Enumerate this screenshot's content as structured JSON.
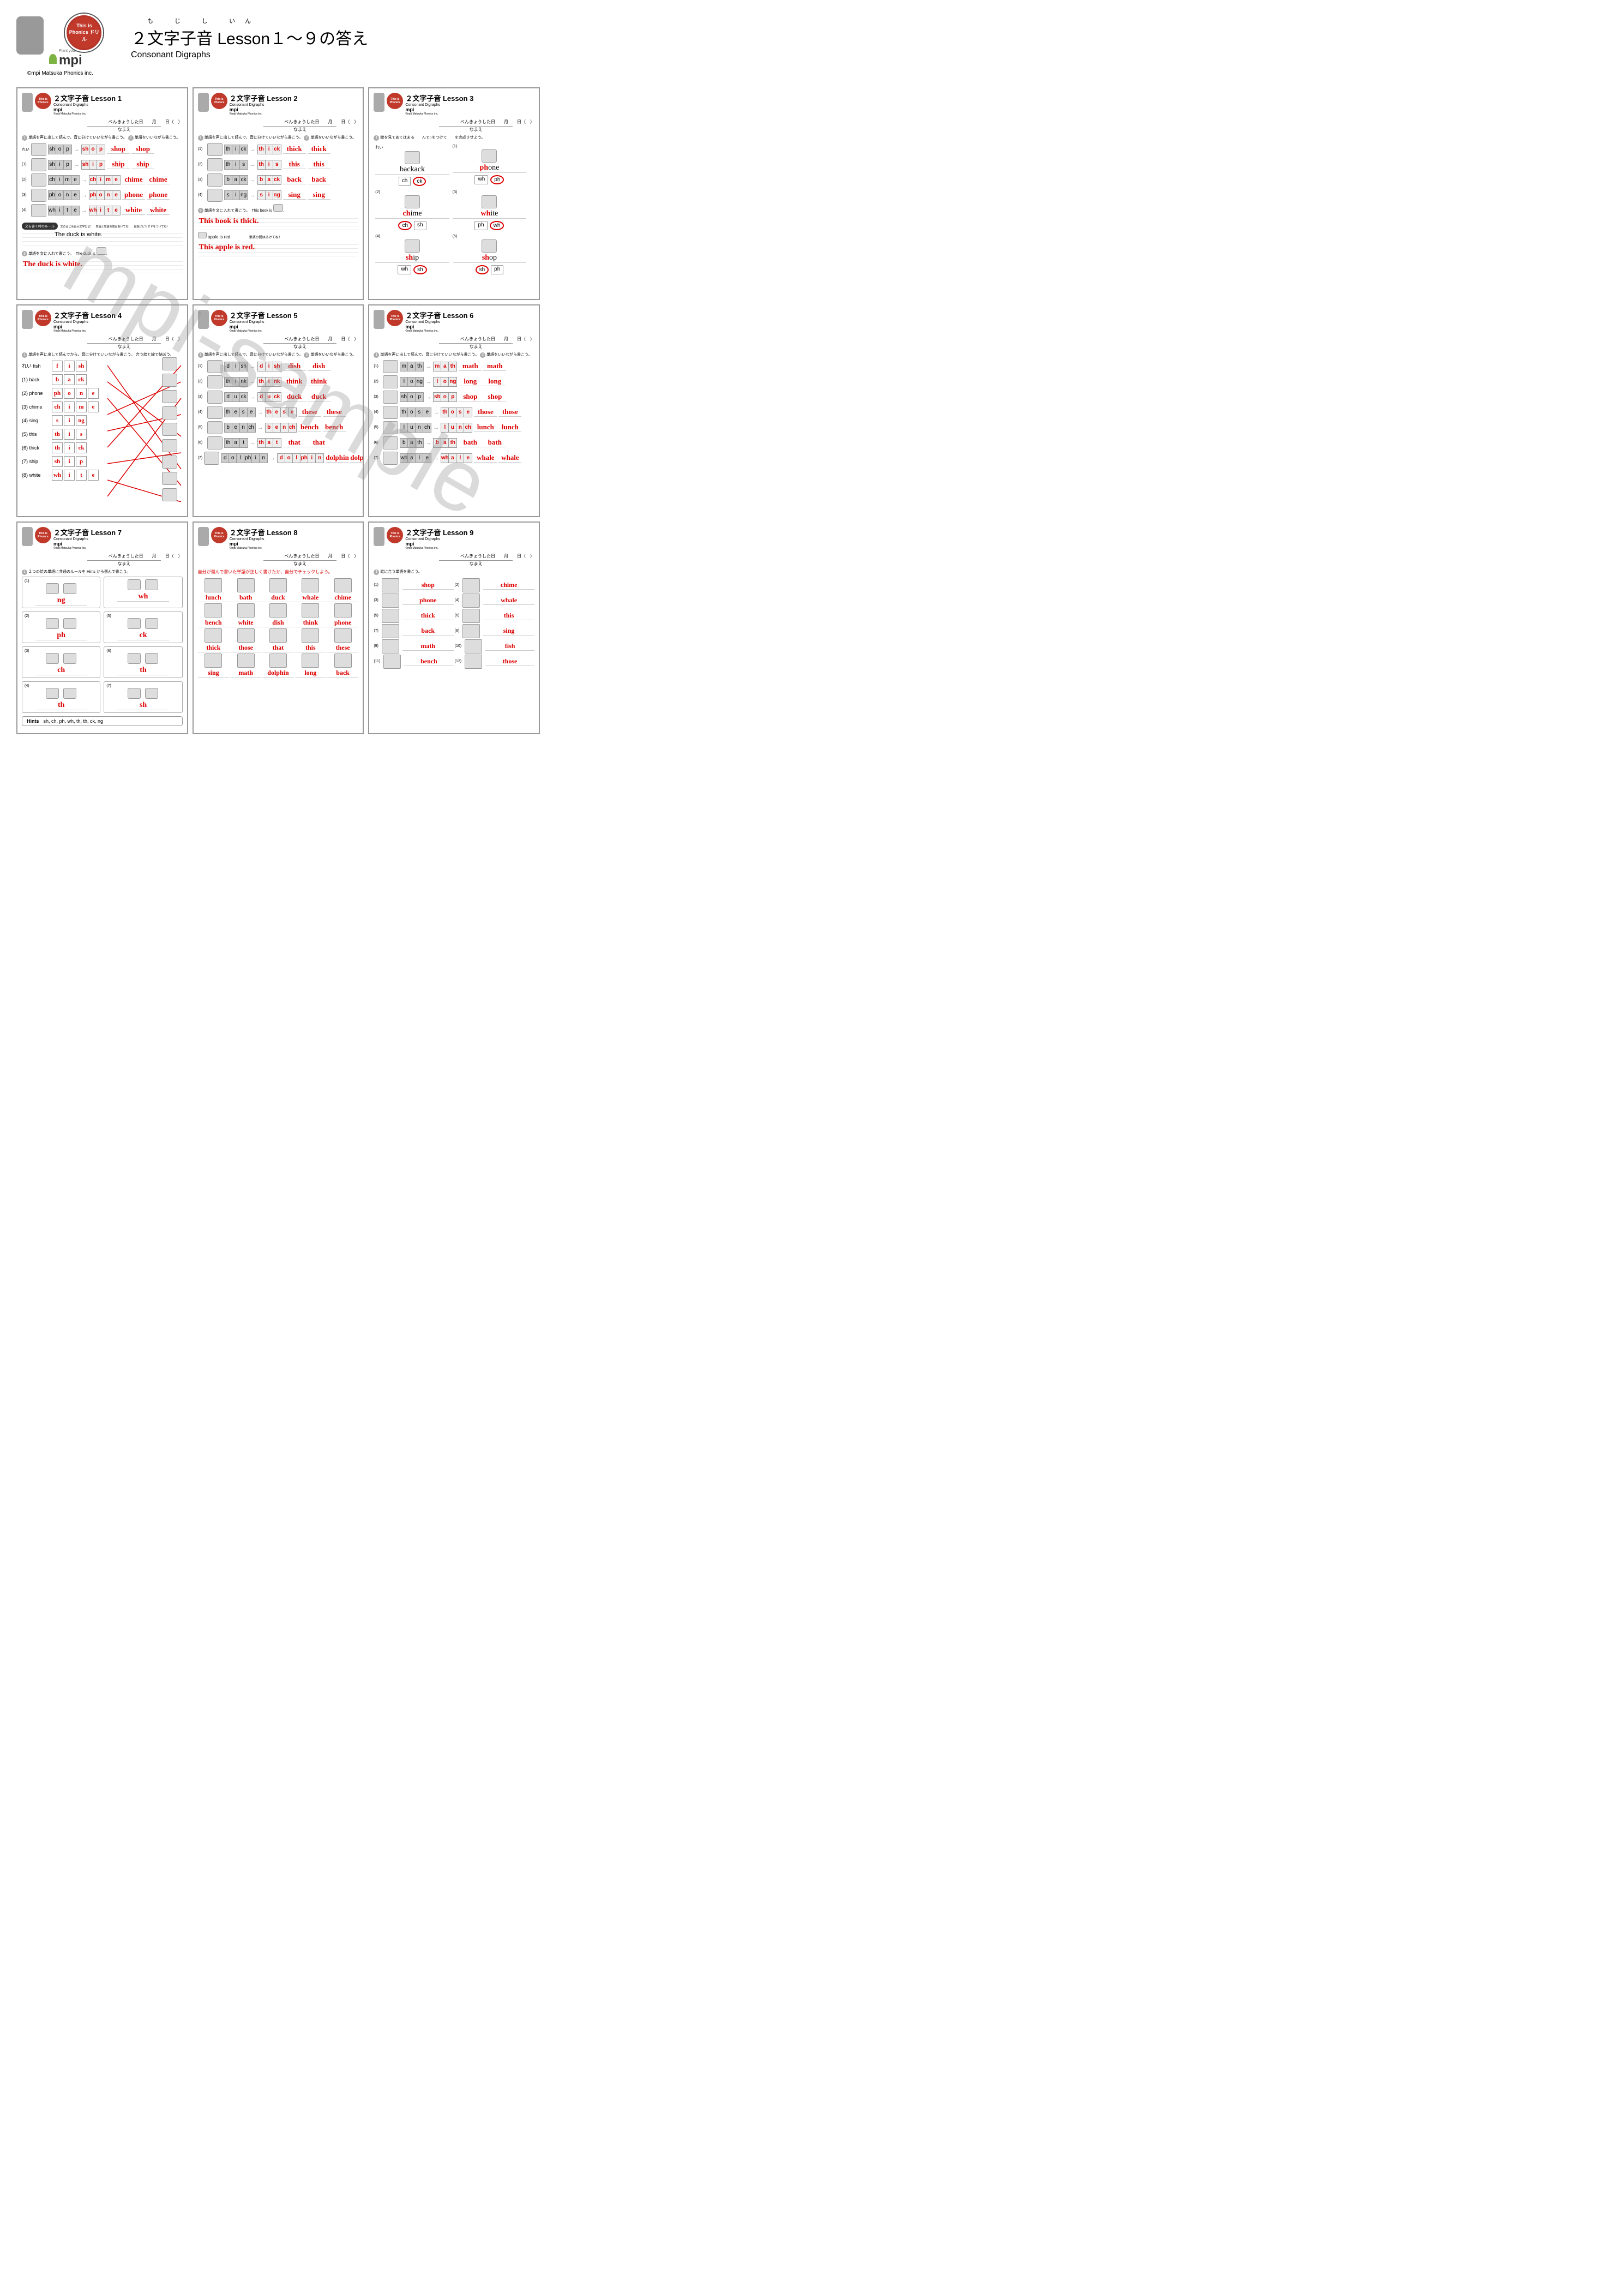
{
  "header": {
    "furigana": "も じ し いん",
    "title": "２文字子音  Lesson１〜９の答え",
    "subtitle": "Consonant Digraphs",
    "copyright": "©mpi Matsuka Phonics inc.",
    "logo_text": "This is Phonics ドリル",
    "mpi_tag": "Plant your future",
    "mpi": "mpi"
  },
  "watermark": "mpi-sample",
  "card_common": {
    "sub": "Consonant Digraphs",
    "date": "べんきょうした日　　月　　日（　）",
    "name": "なまえ",
    "instr1": "単語を声に出して読んで、音に分けていいながら書こう。",
    "instr2": "単語をいいながら書こう。"
  },
  "lesson1": {
    "title": "２文字子音 Lesson 1",
    "rows": [
      {
        "n": "れい",
        "letters": [
          "sh",
          "o",
          "p"
        ],
        "word": "shop"
      },
      {
        "n": "(1)",
        "letters": [
          "sh",
          "i",
          "p"
        ],
        "word": "ship"
      },
      {
        "n": "(2)",
        "letters": [
          "ch",
          "i",
          "m",
          "e"
        ],
        "word": "chime"
      },
      {
        "n": "(3)",
        "letters": [
          "ph",
          "o",
          "n",
          "e"
        ],
        "word": "phone"
      },
      {
        "n": "(4)",
        "letters": [
          "wh",
          "i",
          "t",
          "e"
        ],
        "word": "white"
      }
    ],
    "rule_bar": "文を書く時のルール",
    "rule_text": "文のはじめは大文字だよ！　単語と単語の間はあけてね！　最後にピリオドをつけてね！",
    "fill_label": "単語を文に入れて書こう。　The duck is",
    "sample_sentence": "The duck is white.",
    "answer_sentence": "The duck is white."
  },
  "lesson2": {
    "title": "２文字子音 Lesson 2",
    "rows": [
      {
        "n": "(1)",
        "letters": [
          "th",
          "i",
          "ck"
        ],
        "word": "thick"
      },
      {
        "n": "(2)",
        "letters": [
          "th",
          "i",
          "s"
        ],
        "word": "this"
      },
      {
        "n": "(3)",
        "letters": [
          "b",
          "a",
          "ck"
        ],
        "word": "back"
      },
      {
        "n": "(4)",
        "letters": [
          "s",
          "i",
          "ng"
        ],
        "word": "sing"
      }
    ],
    "fill_label": "単語を文に入れて書こう。　This book is",
    "sentence1": "This book is thick.",
    "red_prompt": "apple is red.",
    "note": "単語の間はあけてね！",
    "sentence2": "This apple is red."
  },
  "lesson3": {
    "title": "２文字子音 Lesson 3",
    "instr": "絵を見てあてはまる　　んで○をつけて　　を完成させよう。",
    "sample": {
      "letters": [
        "b",
        "a",
        "ck"
      ],
      "word": "back",
      "opts": [
        "ch",
        "ck"
      ],
      "ans": 1
    },
    "items": [
      {
        "n": "(1)",
        "word": "phone",
        "red": "ph",
        "rest": "one",
        "opts": [
          "wh",
          "ph"
        ],
        "ans": 1
      },
      {
        "n": "(2)",
        "word": "chime",
        "red": "ch",
        "rest": "ime",
        "opts": [
          "ch",
          "sh"
        ],
        "ans": 0
      },
      {
        "n": "(3)",
        "word": "white",
        "red": "wh",
        "rest": "ite",
        "opts": [
          "ph",
          "wh"
        ],
        "ans": 1
      },
      {
        "n": "(4)",
        "word": "ship",
        "red": "sh",
        "rest": "ip",
        "opts": [
          "wh",
          "sh"
        ],
        "ans": 1
      },
      {
        "n": "(5)",
        "word": "shop",
        "red": "sh",
        "rest": "op",
        "opts": [
          "sh",
          "ph"
        ],
        "ans": 0
      }
    ]
  },
  "lesson4": {
    "title": "２文字子音 Lesson 4",
    "instr": "単語を声に出して読んでから、音に分けていいながら書こう。\n合う絵と線で結ぼう。",
    "rows": [
      {
        "label": "れい fish",
        "boxes": [
          "f",
          "i",
          "sh"
        ]
      },
      {
        "label": "(1) back",
        "boxes": [
          "b",
          "a",
          "ck"
        ]
      },
      {
        "label": "(2) phone",
        "boxes": [
          "ph",
          "o",
          "n",
          "e"
        ]
      },
      {
        "label": "(3) chime",
        "boxes": [
          "ch",
          "i",
          "m",
          "e"
        ]
      },
      {
        "label": "(4) sing",
        "boxes": [
          "s",
          "i",
          "ng"
        ]
      },
      {
        "label": "(5) this",
        "boxes": [
          "th",
          "i",
          "s"
        ]
      },
      {
        "label": "(6) thick",
        "boxes": [
          "th",
          "i",
          "ck"
        ]
      },
      {
        "label": "(7) ship",
        "boxes": [
          "sh",
          "i",
          "p"
        ]
      },
      {
        "label": "(8) white",
        "boxes": [
          "wh",
          "i",
          "t",
          "e"
        ]
      }
    ]
  },
  "lesson5": {
    "title": "２文字子音 Lesson 5",
    "rows": [
      {
        "n": "(1)",
        "letters": [
          "d",
          "i",
          "sh"
        ],
        "word": "dish"
      },
      {
        "n": "(2)",
        "letters": [
          "th",
          "i",
          "nk"
        ],
        "word": "think"
      },
      {
        "n": "(3)",
        "letters": [
          "d",
          "u",
          "ck"
        ],
        "word": "duck"
      },
      {
        "n": "(4)",
        "letters": [
          "th",
          "e",
          "s",
          "e"
        ],
        "word": "these",
        "note": "そのSはそ"
      },
      {
        "n": "(5)",
        "letters": [
          "b",
          "e",
          "n",
          "ch"
        ],
        "word": "bench"
      },
      {
        "n": "(6)",
        "letters": [
          "th",
          "a",
          "t"
        ],
        "word": "that"
      },
      {
        "n": "(7)",
        "letters": [
          "d",
          "o",
          "l",
          "ph",
          "i",
          "n"
        ],
        "word": "dolphin"
      }
    ]
  },
  "lesson6": {
    "title": "２文字子音 Lesson 6",
    "rows": [
      {
        "n": "(1)",
        "letters": [
          "m",
          "a",
          "th"
        ],
        "word": "math"
      },
      {
        "n": "(2)",
        "letters": [
          "l",
          "o",
          "ng"
        ],
        "word": "long"
      },
      {
        "n": "(3)",
        "letters": [
          "sh",
          "o",
          "p"
        ],
        "word": "shop"
      },
      {
        "n": "(4)",
        "letters": [
          "th",
          "o",
          "s",
          "e"
        ],
        "word": "those",
        "note": "このSはその音になるよ"
      },
      {
        "n": "(5)",
        "letters": [
          "l",
          "u",
          "n",
          "ch"
        ],
        "word": "lunch"
      },
      {
        "n": "(6)",
        "letters": [
          "b",
          "a",
          "th"
        ],
        "word": "bath"
      },
      {
        "n": "(7)",
        "letters": [
          "wh",
          "a",
          "l",
          "e"
        ],
        "word": "whale"
      }
    ]
  },
  "lesson7": {
    "title": "２文字子音 Lesson 7",
    "instr": "２つの絵の単語に共通のルールを Hints から選んで書こう。",
    "cells": [
      {
        "n": "(1)",
        "ans": "ng"
      },
      {
        "n": "",
        "ans": "wh"
      },
      {
        "n": "(2)",
        "ans": "ph"
      },
      {
        "n": "(5)",
        "ans": "ck"
      },
      {
        "n": "(3)",
        "ans": "ch"
      },
      {
        "n": "(6)",
        "ans": "th"
      },
      {
        "n": "(4)",
        "ans": "th"
      },
      {
        "n": "(7)",
        "ans": "sh"
      }
    ],
    "hints_label": "Hints",
    "hints": "sh,  ch,  ph,  wh,  th,  th,  ck,  ng"
  },
  "lesson8": {
    "title": "２文字子音 Lesson 8",
    "instr": "自分が選んで書いた単語が正しく書けたか、自分でチェックしよう。",
    "words": [
      "lunch",
      "bath",
      "duck",
      "whale",
      "chime",
      "bench",
      "white",
      "dish",
      "think",
      "phone",
      "thick",
      "those",
      "that",
      "this",
      "these",
      "sing",
      "math",
      "dolphin",
      "long",
      "back"
    ]
  },
  "lesson9": {
    "title": "２文字子音 Lesson 9",
    "instr": "絵に合う単語を書こう。",
    "items": [
      {
        "n": "(1)",
        "w": "shop"
      },
      {
        "n": "(2)",
        "w": "chime"
      },
      {
        "n": "(3)",
        "w": "phone"
      },
      {
        "n": "(4)",
        "w": "whale"
      },
      {
        "n": "(5)",
        "w": "thick"
      },
      {
        "n": "(6)",
        "w": "this"
      },
      {
        "n": "(7)",
        "w": "back"
      },
      {
        "n": "(8)",
        "w": "sing"
      },
      {
        "n": "(9)",
        "w": "math"
      },
      {
        "n": "(10)",
        "w": "fish"
      },
      {
        "n": "(11)",
        "w": "bench"
      },
      {
        "n": "(12)",
        "w": "those"
      }
    ]
  }
}
